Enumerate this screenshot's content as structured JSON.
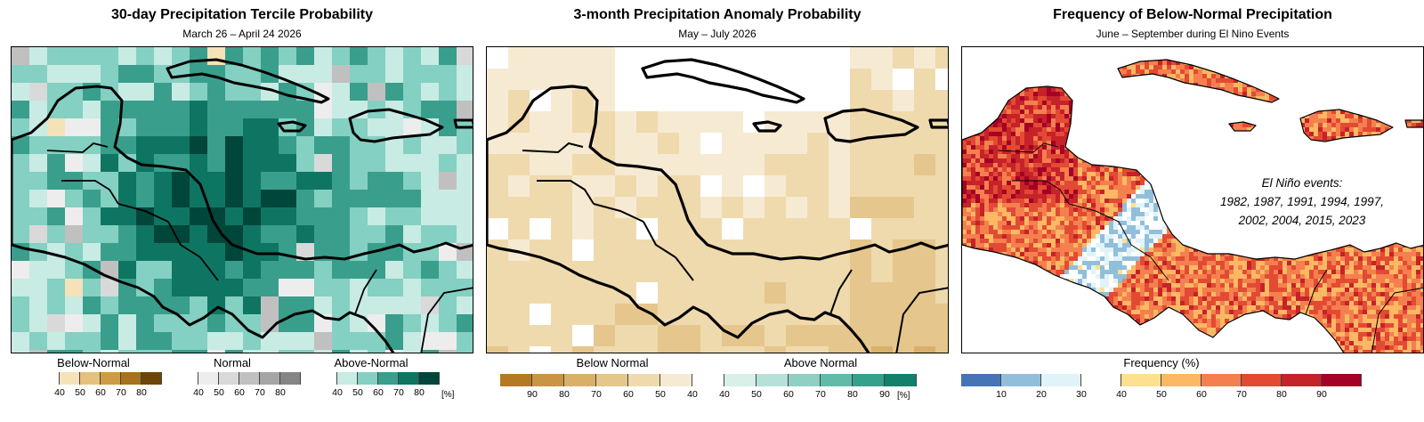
{
  "panels": [
    {
      "title": "30-day Precipitation Tercile Probability",
      "subtitle": "March 26 – April 24 2026",
      "legend": {
        "groups": [
          {
            "label": "Below-Normal",
            "ticks": [
              "40",
              "50",
              "60",
              "70",
              "80"
            ],
            "colors": [
              "#ffffff",
              "#f5e2b8",
              "#e5c27c",
              "#cf9b45",
              "#a8711e",
              "#6e4508"
            ]
          },
          {
            "label": "Normal",
            "ticks": [
              "40",
              "50",
              "60",
              "70",
              "80"
            ],
            "colors": [
              "#ffffff",
              "#ededed",
              "#d9d9d9",
              "#c0c0c0",
              "#a5a5a5",
              "#858585"
            ]
          },
          {
            "label": "Above-Normal",
            "ticks": [
              "40",
              "50",
              "60",
              "70",
              "80"
            ],
            "colors": [
              "#ffffff",
              "#c8ebe4",
              "#84d0c2",
              "#3a9e8c",
              "#0f7563",
              "#00463b"
            ]
          }
        ],
        "unit": "[%]"
      }
    },
    {
      "title": "3-month Precipitation Anomaly Probability",
      "subtitle": "May – July 2026",
      "legend": {
        "below_label": "Below Normal",
        "above_label": "Above Normal",
        "ticks": [
          "90",
          "80",
          "70",
          "60",
          "50",
          "40",
          "40",
          "50",
          "60",
          "70",
          "80",
          "90"
        ],
        "colors": [
          "#b37a23",
          "#c99444",
          "#d9b06a",
          "#e5c68c",
          "#efdaae",
          "#f6ead2",
          "#ffffff",
          "#d8efea",
          "#b6e1d8",
          "#8fd0c3",
          "#62baa8",
          "#35a08c",
          "#11806d"
        ],
        "unit": "[%]"
      }
    },
    {
      "title": "Frequency of Below-Normal Precipitation",
      "subtitle": "June – September during El Nino Events",
      "annotation": {
        "heading": "El Niño events:",
        "lines": [
          "1982, 1987, 1991, 1994, 1997,",
          "2002, 2004, 2015, 2023"
        ]
      },
      "legend": {
        "label": "Frequency (%)",
        "ticks": [
          "10",
          "20",
          "30",
          "40",
          "50",
          "60",
          "70",
          "80",
          "90"
        ],
        "colors": [
          "#4575b4",
          "#91bfdb",
          "#e0f3f8",
          "#ffffff",
          "#fee090",
          "#fdb863",
          "#f4804f",
          "#e34a33",
          "#c6222a",
          "#a50026"
        ]
      }
    }
  ]
}
